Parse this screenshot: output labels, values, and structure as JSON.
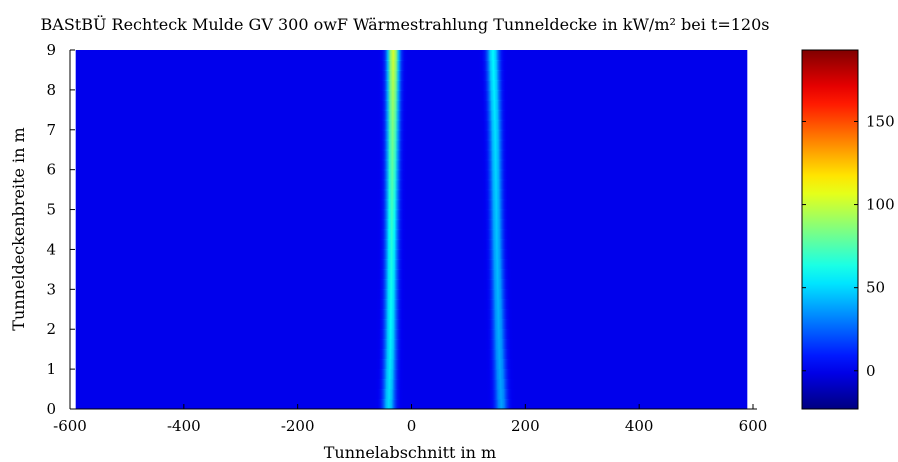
{
  "chart_data": {
    "type": "heatmap",
    "title": "BAStBÜ Rechteck Mulde GV 300 owF Wärmestrahlung Tunneldecke in kW/m² bei t=120s",
    "xlabel": "Tunnelabschnitt in m",
    "ylabel": "Tunneldeckenbreite in m",
    "xlim": [
      -600,
      600
    ],
    "ylim": [
      0,
      9
    ],
    "x_data_range": [
      -590,
      590
    ],
    "xticks": [
      -600,
      -400,
      -200,
      0,
      200,
      400,
      600
    ],
    "yticks": [
      0,
      1,
      2,
      3,
      4,
      5,
      6,
      7,
      8,
      9
    ],
    "colormap": "jet",
    "color_limits": [
      -23,
      193
    ],
    "colorbar_ticks": [
      0,
      50,
      100,
      150
    ],
    "background_value": 0,
    "grid": false,
    "series": [
      {
        "name": "",
        "x_center": [
          -32,
          -33,
          -35,
          -37,
          -40
        ],
        "y": [
          9,
          7,
          4,
          1.5,
          0
        ],
        "peak": [
          105,
          85,
          65,
          55,
          50
        ],
        "width": 10
      },
      {
        "name": "",
        "x_center": [
          143,
          147,
          150,
          154,
          158
        ],
        "y": [
          9,
          7,
          4,
          1.5,
          0
        ],
        "peak": [
          58,
          52,
          45,
          40,
          38
        ],
        "width": 10
      }
    ]
  }
}
